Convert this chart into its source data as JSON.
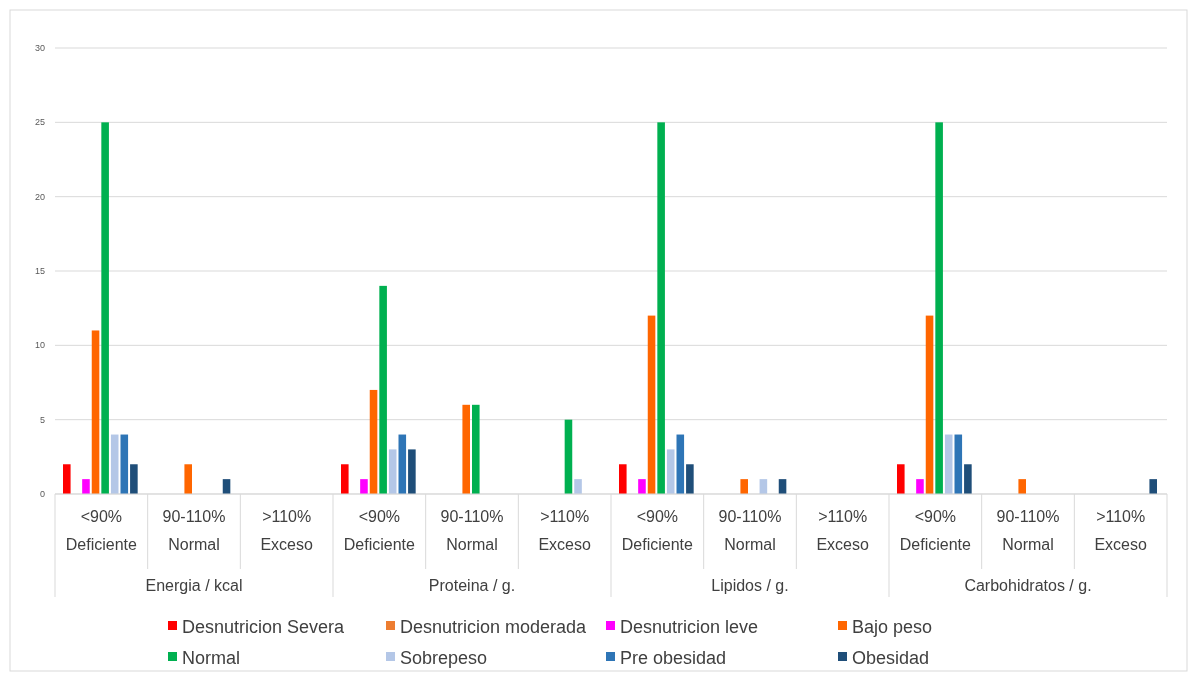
{
  "chart_data": {
    "type": "bar",
    "categories": [
      "<90%\nDeficiente",
      "90-110%\nNormal",
      ">110%\nExceso",
      "<90%\nDeficiente",
      "90-110%\nNormal",
      ">110%\nExceso",
      "<90%\nDeficiente",
      "90-110%\nNormal",
      ">110%\nExceso",
      "<90%\nDeficiente",
      "90-110%\nNormal",
      ">110%\nExceso"
    ],
    "annotations": [
      "Energia / kcal",
      "Proteina / g.",
      "Lipidos / g.",
      "Carbohidratos / g."
    ],
    "series": [
      {
        "name": "Desnutricion Severa",
        "color": "#ff0000",
        "values": [
          2,
          null,
          null,
          2,
          null,
          null,
          2,
          null,
          null,
          2,
          null,
          null
        ]
      },
      {
        "name": "Desnutricion moderada",
        "color": "#ed7d31",
        "values": [
          null,
          null,
          null,
          null,
          null,
          null,
          null,
          null,
          null,
          null,
          null,
          null
        ]
      },
      {
        "name": "Desnutricion leve",
        "color": "#ff00ff",
        "values": [
          1,
          null,
          null,
          1,
          null,
          null,
          1,
          null,
          null,
          1,
          null,
          null
        ]
      },
      {
        "name": "Bajo peso",
        "color": "#ff6600",
        "values": [
          11,
          2,
          null,
          7,
          6,
          null,
          12,
          1,
          null,
          12,
          1,
          null
        ]
      },
      {
        "name": "Normal",
        "color": "#00b050",
        "values": [
          25,
          null,
          null,
          14,
          6,
          5,
          25,
          null,
          null,
          25,
          null,
          null
        ]
      },
      {
        "name": "Sobrepeso",
        "color": "#b4c7e7",
        "values": [
          4,
          null,
          null,
          3,
          null,
          1,
          3,
          1,
          null,
          4,
          null,
          null
        ]
      },
      {
        "name": "Pre obesidad",
        "color": "#2e75b6",
        "values": [
          4,
          null,
          null,
          4,
          null,
          null,
          4,
          null,
          null,
          4,
          null,
          null
        ]
      },
      {
        "name": "Obesidad",
        "color": "#1f4e79",
        "values": [
          2,
          1,
          null,
          3,
          null,
          null,
          2,
          1,
          null,
          2,
          null,
          1
        ]
      }
    ],
    "ylim": [
      0,
      30
    ],
    "yticks": [
      0,
      5,
      10,
      15,
      20,
      25,
      30
    ],
    "grid": "y",
    "legend": "bottom"
  }
}
